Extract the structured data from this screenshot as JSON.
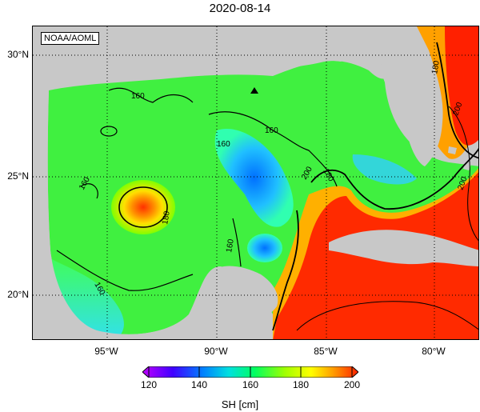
{
  "title": "2020-08-14",
  "credit": "NOAA/AOML",
  "lat_labels": [
    "30°N",
    "25°N",
    "20°N"
  ],
  "lon_labels": [
    "95°W",
    "90°W",
    "85°W",
    "80°W"
  ],
  "contour_labels": [
    "160",
    "160",
    "160",
    "160",
    "160",
    "160",
    "180",
    "180",
    "180",
    "200",
    "200",
    "200"
  ],
  "colorbar": {
    "ticks": [
      "120",
      "140",
      "160",
      "180",
      "200"
    ],
    "title": "SH [cm]",
    "colors": [
      "#c000ff",
      "#4000ff",
      "#0080ff",
      "#00e0e0",
      "#00ff60",
      "#a0ff00",
      "#ffff00",
      "#ffa000",
      "#ff2000"
    ]
  },
  "colors": {
    "land": "#c8c8c8",
    "warm_core": "#ff2000",
    "loop_current_edge": "#ffa000",
    "gulf_interior": "#40ff40",
    "low_sh": "#40a0ff"
  },
  "markers": [
    {
      "type": "triangle",
      "name": "station-marker"
    }
  ]
}
